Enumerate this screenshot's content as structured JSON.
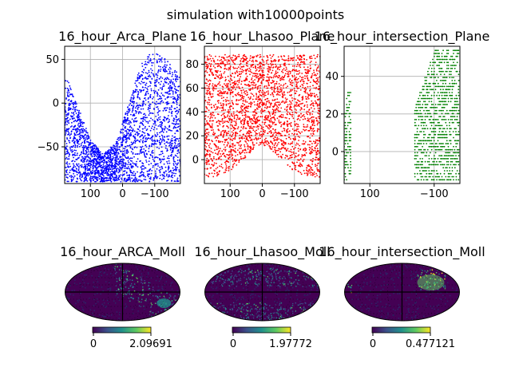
{
  "figure": {
    "suptitle": "simulation with10000points"
  },
  "chart_data": [
    {
      "type": "scatter",
      "title": "16_hour_Arca_Plane",
      "color": "#0000ff",
      "xlim": [
        180,
        -180
      ],
      "ylim": [
        -92,
        65
      ],
      "xticks": [
        100,
        0,
        -100
      ],
      "xtick_labels": [
        "100",
        "0",
        "−100"
      ],
      "yticks": [
        50,
        0,
        -50
      ],
      "ytick_labels": [
        "50",
        "0",
        "−50"
      ],
      "grid": true,
      "envelope": {
        "ra": [
          180,
          140,
          100,
          60,
          20,
          -20,
          -40,
          -60,
          -80,
          -100,
          -120,
          -140,
          -160,
          -180
        ],
        "dec_upper": [
          35,
          -2,
          -42,
          -58,
          -45,
          0,
          25,
          45,
          55,
          57,
          55,
          48,
          40,
          32
        ],
        "dec_lower": [
          -90,
          -90,
          -90,
          -90,
          -90,
          -90,
          -90,
          -90,
          -90,
          -90,
          -90,
          -90,
          -90,
          -90
        ]
      }
    },
    {
      "type": "scatter",
      "title": "16_hour_Lhasoo_Plane",
      "color": "#ff0000",
      "xlim": [
        180,
        -180
      ],
      "ylim": [
        -20,
        95
      ],
      "xticks": [
        100,
        0,
        -100
      ],
      "xtick_labels": [
        "100",
        "0",
        "−100"
      ],
      "yticks": [
        0,
        20,
        40,
        60,
        80
      ],
      "ytick_labels": [
        "0",
        "20",
        "40",
        "60",
        "80"
      ],
      "grid": true,
      "envelope": {
        "ra": [
          180,
          140,
          100,
          60,
          20,
          0,
          -20,
          -60,
          -100,
          -140,
          -180
        ],
        "dec_upper": [
          88,
          88,
          88,
          88,
          88,
          88,
          88,
          88,
          88,
          88,
          88
        ],
        "dec_lower": [
          -15,
          -14,
          -10,
          0,
          10,
          12,
          10,
          0,
          -10,
          -14,
          -15
        ]
      }
    },
    {
      "type": "scatter",
      "title": "16_hour_intersection_Plane",
      "color": "#008000",
      "xlim": [
        180,
        -180
      ],
      "ylim": [
        -17,
        56
      ],
      "xticks": [
        100,
        -100
      ],
      "xtick_labels": [
        "100",
        "−100"
      ],
      "yticks": [
        0,
        20,
        40
      ],
      "ytick_labels": [
        "0",
        "20",
        "40"
      ],
      "grid": true,
      "clusters": [
        {
          "ra": [
            180,
            160
          ],
          "dec": [
            -15,
            32
          ]
        },
        {
          "ra": [
            -40,
            -180
          ],
          "dec": [
            -15,
            55
          ]
        }
      ]
    },
    {
      "type": "heatmap",
      "title": "16_hour_ARCA_Moll",
      "projection": "mollweide",
      "colorbar_min": "0",
      "colorbar_max": "2.09691",
      "colormap": [
        "#440154",
        "#3b528b",
        "#21918c",
        "#5ec962",
        "#fde725"
      ]
    },
    {
      "type": "heatmap",
      "title": "16_hour_Lhasoo_Moll",
      "projection": "mollweide",
      "colorbar_min": "0",
      "colorbar_max": "1.97772",
      "colormap": [
        "#440154",
        "#3b528b",
        "#21918c",
        "#5ec962",
        "#fde725"
      ]
    },
    {
      "type": "heatmap",
      "title": "16_hour_intersection_Moll",
      "projection": "mollweide",
      "colorbar_min": "0",
      "colorbar_max": "0.477121",
      "colormap": [
        "#440154",
        "#3b528b",
        "#21918c",
        "#5ec962",
        "#fde725"
      ]
    }
  ]
}
